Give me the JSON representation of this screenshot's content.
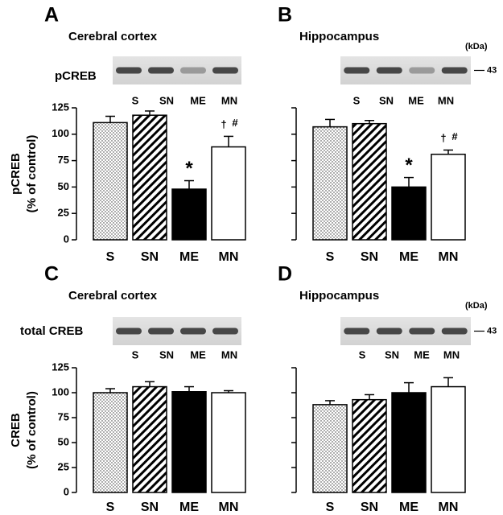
{
  "chart_data": [
    {
      "type": "bar",
      "panel_label": "A",
      "title": "Cerebral cortex",
      "blot_label": "pCREB",
      "blot_lanes": [
        "S",
        "SN",
        "ME",
        "MN"
      ],
      "ylabel": [
        "pCREB",
        "(% of control)"
      ],
      "categories": [
        "S",
        "SN",
        "ME",
        "MN"
      ],
      "values": [
        111,
        118,
        48,
        88
      ],
      "errors": [
        6,
        4,
        8,
        10
      ],
      "bar_fills": [
        "dots",
        "stripes",
        "black",
        "white"
      ],
      "ylim": [
        0,
        125
      ],
      "yticks": [
        0,
        25,
        50,
        75,
        100,
        125
      ],
      "ytick_labels": true,
      "annotations": [
        {
          "text": "*",
          "category": "ME"
        },
        {
          "text": "†",
          "category": "MN"
        },
        {
          "text": "#",
          "category": "MN"
        }
      ]
    },
    {
      "type": "bar",
      "panel_label": "B",
      "title": "Hippocampus",
      "blot_label": null,
      "kda_label": "(kDa)",
      "kda_marker": 43,
      "blot_lanes": [
        "S",
        "SN",
        "ME",
        "MN"
      ],
      "categories": [
        "S",
        "SN",
        "ME",
        "MN"
      ],
      "values": [
        107,
        110,
        50,
        81
      ],
      "errors": [
        7,
        3,
        9,
        4
      ],
      "bar_fills": [
        "dots",
        "stripes",
        "black",
        "white"
      ],
      "ylim": [
        0,
        125
      ],
      "yticks": [
        0,
        25,
        50,
        75,
        100,
        125
      ],
      "ytick_labels": false,
      "annotations": [
        {
          "text": "*",
          "category": "ME"
        },
        {
          "text": "†",
          "category": "MN"
        },
        {
          "text": "#",
          "category": "MN"
        }
      ]
    },
    {
      "type": "bar",
      "panel_label": "C",
      "title": "Cerebral cortex",
      "blot_label": "total  CREB",
      "blot_lanes": [
        "S",
        "SN",
        "ME",
        "MN"
      ],
      "ylabel": [
        "CREB",
        "(% of control)"
      ],
      "categories": [
        "S",
        "SN",
        "ME",
        "MN"
      ],
      "values": [
        100,
        106,
        101,
        100
      ],
      "errors": [
        4,
        5,
        5,
        2
      ],
      "bar_fills": [
        "dots",
        "stripes",
        "black",
        "white"
      ],
      "ylim": [
        0,
        125
      ],
      "yticks": [
        0,
        25,
        50,
        75,
        100,
        125
      ],
      "ytick_labels": true
    },
    {
      "type": "bar",
      "panel_label": "D",
      "title": "Hippocampus",
      "blot_label": null,
      "kda_label": "(kDa)",
      "kda_marker": 43,
      "blot_lanes": [
        "S",
        "SN",
        "ME",
        "MN"
      ],
      "categories": [
        "S",
        "SN",
        "ME",
        "MN"
      ],
      "values": [
        88,
        93,
        100,
        106
      ],
      "errors": [
        4,
        5,
        10,
        9
      ],
      "bar_fills": [
        "dots",
        "stripes",
        "black",
        "white"
      ],
      "ylim": [
        0,
        125
      ],
      "yticks": [
        0,
        25,
        50,
        75,
        100,
        125
      ],
      "ytick_labels": false
    }
  ]
}
